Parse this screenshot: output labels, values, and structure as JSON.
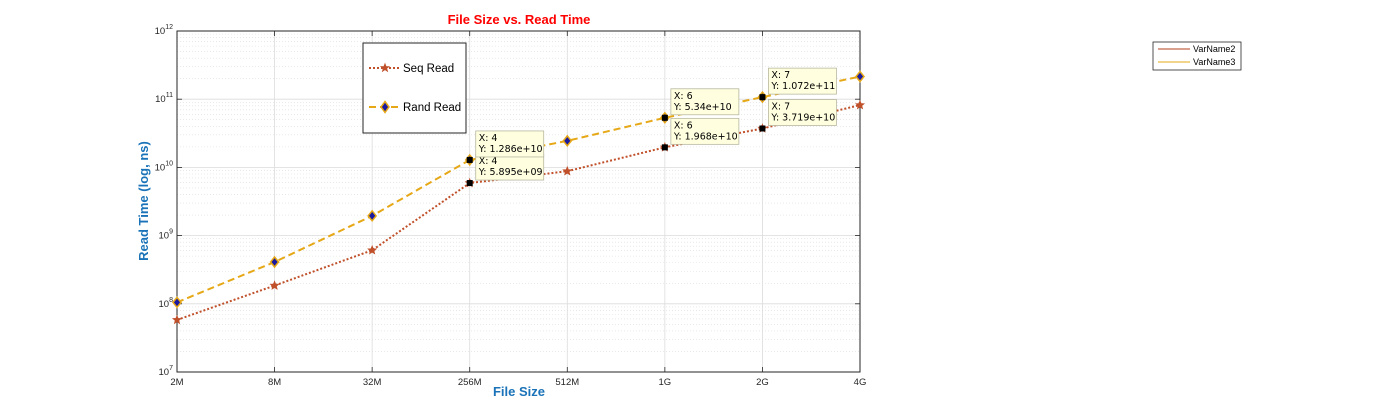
{
  "chart_data": {
    "type": "line",
    "title": "File Size vs. Read Time",
    "xlabel": "File Size",
    "ylabel": "Read Time (log, ns)",
    "y_scale": "log",
    "ylim": [
      10000000,
      1000000000000
    ],
    "y_ticks": [
      {
        "base": "10",
        "exp": "7"
      },
      {
        "base": "10",
        "exp": "8"
      },
      {
        "base": "10",
        "exp": "9"
      },
      {
        "base": "10",
        "exp": "10"
      },
      {
        "base": "10",
        "exp": "11"
      },
      {
        "base": "10",
        "exp": "12"
      }
    ],
    "categories": [
      "2M",
      "8M",
      "32M",
      "256M",
      "512M",
      "1G",
      "2G",
      "4G"
    ],
    "x_index_range": [
      0,
      7
    ],
    "grid": true,
    "series": [
      {
        "name": "Seq Read",
        "color": "#c0502a",
        "line": "dotted",
        "marker": "star",
        "values": [
          58000000,
          185000000,
          610000000,
          5895000000,
          8800000000,
          19680000000,
          37190000000,
          82000000000
        ]
      },
      {
        "name": "Rand Read",
        "color": "#e6a817",
        "line": "dashed",
        "marker": "diamond",
        "values": [
          105000000,
          410000000,
          1950000000,
          12860000000,
          24500000000,
          53400000000,
          107200000000,
          215000000000
        ]
      }
    ],
    "legend": {
      "placement": "top-left",
      "entries": [
        "Seq Read",
        "Rand Read"
      ]
    },
    "secondary_legend": {
      "placement": "far-right",
      "entries": [
        "VarName2",
        "VarName3"
      ],
      "colors": [
        "#b3431b",
        "#e6a817"
      ]
    },
    "datatips": [
      {
        "series": 0,
        "index": 3,
        "x_text": "X: 4",
        "y_text": "Y: 5.895e+09"
      },
      {
        "series": 1,
        "index": 3,
        "x_text": "X: 4",
        "y_text": "Y: 1.286e+10"
      },
      {
        "series": 0,
        "index": 5,
        "x_text": "X: 6",
        "y_text": "Y: 1.968e+10"
      },
      {
        "series": 1,
        "index": 5,
        "x_text": "X: 6",
        "y_text": "Y: 5.34e+10"
      },
      {
        "series": 0,
        "index": 6,
        "x_text": "X: 7",
        "y_text": "Y: 3.719e+10"
      },
      {
        "series": 1,
        "index": 6,
        "x_text": "X: 7",
        "y_text": "Y: 1.072e+11"
      }
    ],
    "colors": {
      "title": "#ff0000",
      "axis_label": "#1a73b8",
      "grid": "#dcdcdc",
      "tip_bg": "#ffffe0",
      "tip_border": "#b8b8a0"
    }
  }
}
